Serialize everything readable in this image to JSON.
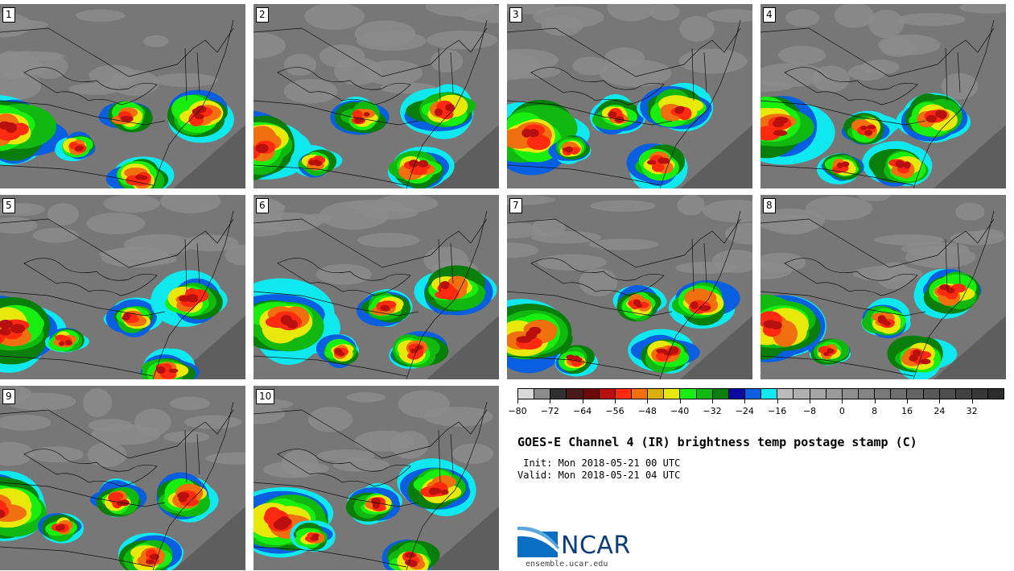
{
  "panels": [
    {
      "label": "1"
    },
    {
      "label": "2"
    },
    {
      "label": "3"
    },
    {
      "label": "4"
    },
    {
      "label": "5"
    },
    {
      "label": "6"
    },
    {
      "label": "7"
    },
    {
      "label": "8"
    },
    {
      "label": "9"
    },
    {
      "label": "10"
    }
  ],
  "colorbar": {
    "colors": [
      "#d9d9d9",
      "#8c8c8c",
      "#303030",
      "#4a1a1a",
      "#6b0808",
      "#b80f0f",
      "#ff2a10",
      "#f07010",
      "#d9b00e",
      "#e8e80a",
      "#18ee10",
      "#10b810",
      "#0a7e0a",
      "#0a0aa0",
      "#0a5ee0",
      "#10e8f0",
      "#bbbbbb",
      "#b0b0b0",
      "#a5a5a5",
      "#9a9a9a",
      "#8f8f8f",
      "#848484",
      "#797979",
      "#6e6e6e",
      "#636363",
      "#585858",
      "#4d4d4d",
      "#424242",
      "#373737",
      "#2c2c2c"
    ],
    "tick_labels": [
      "−80",
      "−72",
      "−64",
      "−56",
      "−48",
      "−40",
      "−32",
      "−24",
      "−16",
      "−8",
      "0",
      "8",
      "16",
      "24",
      "32"
    ]
  },
  "title": "GOES-E Channel 4 (IR) brightness temp postage stamp (C)",
  "init": " Init: Mon 2018-05-21 00 UTC",
  "valid": "Valid: Mon 2018-05-21 04 UTC",
  "logo_text": "NCAR",
  "site": "ensemble.ucar.edu"
}
